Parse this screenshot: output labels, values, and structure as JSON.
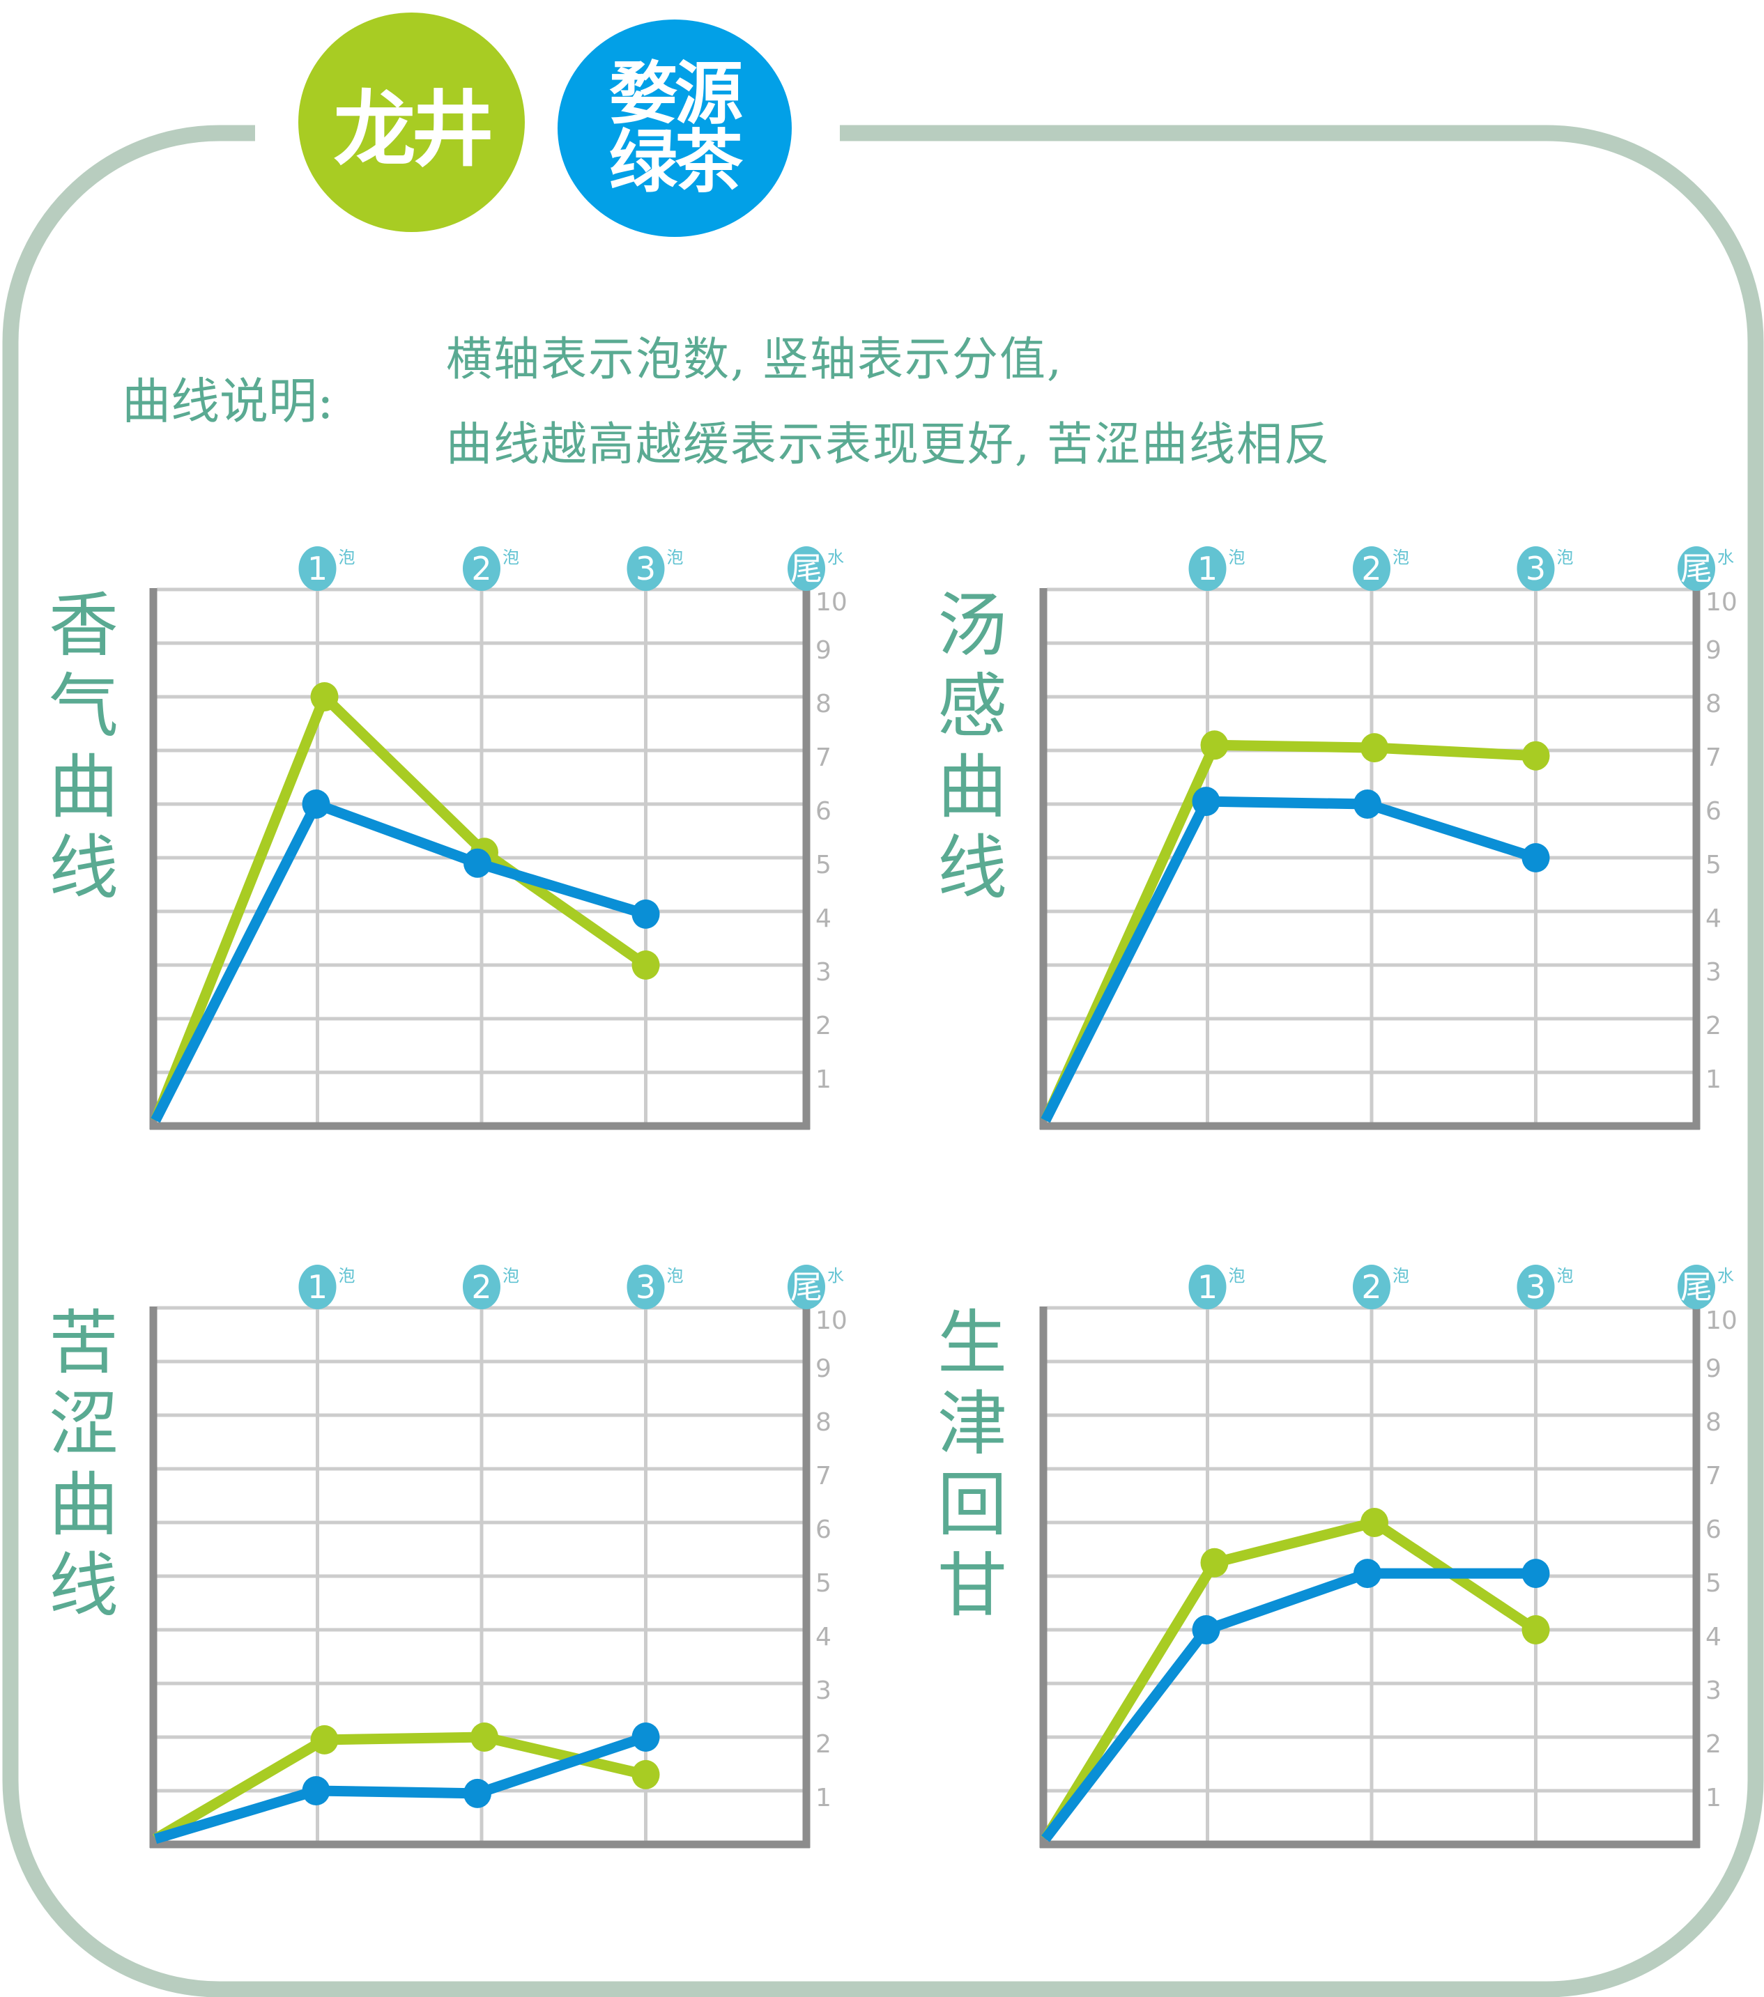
{
  "badges": {
    "longjing": {
      "label": "龙井",
      "color": "#a8cc23"
    },
    "wuyuan": {
      "line1": "婺源",
      "line2": "绿茶",
      "color": "#02a0e7"
    }
  },
  "legend": {
    "label": "曲线说明:",
    "line1": "横轴表示泡数, 竖轴表示分值,",
    "line2": "曲线越高越缓表示表现更好, 苦涩曲线相反"
  },
  "colors": {
    "frame": "#b8cdbf",
    "title_text": "#5aaa92",
    "axis": "#8c8c8c",
    "grid": "#cccccc",
    "tick_text": "#b3b3b3",
    "infusion_marker": "#62c3d2",
    "series_longjing": "#a8cc23",
    "series_wuyuan": "#0a8fd6"
  },
  "x_markers": [
    {
      "num": "1",
      "suffix": "泡"
    },
    {
      "num": "2",
      "suffix": "泡"
    },
    {
      "num": "3",
      "suffix": "泡"
    },
    {
      "num": "尾",
      "suffix": "水"
    }
  ],
  "y_ticks": [
    "10",
    "9",
    "8",
    "7",
    "6",
    "5",
    "4",
    "3",
    "2",
    "1"
  ],
  "chart_data": [
    {
      "type": "line",
      "title": "香气曲线",
      "xlabel": "泡数",
      "ylabel": "分值",
      "categories": [
        "0",
        "1泡",
        "2泡",
        "3泡",
        "尾水"
      ],
      "ylim": [
        0,
        10
      ],
      "grid": true,
      "series": [
        {
          "name": "龙井",
          "color": "#a8cc23",
          "values": [
            0,
            8.0,
            5.1,
            3.0
          ]
        },
        {
          "name": "婺源绿茶",
          "color": "#0a8fd6",
          "values": [
            0,
            6.0,
            4.9,
            3.95
          ]
        }
      ]
    },
    {
      "type": "line",
      "title": "汤感曲线",
      "xlabel": "泡数",
      "ylabel": "分值",
      "categories": [
        "0",
        "1泡",
        "2泡",
        "3泡",
        "尾水"
      ],
      "ylim": [
        0,
        10
      ],
      "grid": true,
      "series": [
        {
          "name": "龙井",
          "color": "#a8cc23",
          "values": [
            0,
            7.1,
            7.05,
            6.9
          ]
        },
        {
          "name": "婺源绿茶",
          "color": "#0a8fd6",
          "values": [
            0,
            6.05,
            6.0,
            5.0
          ]
        }
      ]
    },
    {
      "type": "line",
      "title": "苦涩曲线",
      "xlabel": "泡数",
      "ylabel": "分值",
      "categories": [
        "0",
        "1泡",
        "2泡",
        "3泡",
        "尾水"
      ],
      "ylim": [
        0,
        10
      ],
      "grid": true,
      "series": [
        {
          "name": "龙井",
          "color": "#a8cc23",
          "values": [
            0,
            1.95,
            2.0,
            1.3
          ]
        },
        {
          "name": "婺源绿茶",
          "color": "#0a8fd6",
          "values": [
            0,
            1.0,
            0.95,
            2.0
          ]
        }
      ]
    },
    {
      "type": "line",
      "title": "生津回甘",
      "xlabel": "泡数",
      "ylabel": "分值",
      "categories": [
        "0",
        "1泡",
        "2泡",
        "3泡",
        "尾水"
      ],
      "ylim": [
        0,
        10
      ],
      "grid": true,
      "series": [
        {
          "name": "龙井",
          "color": "#a8cc23",
          "values": [
            0,
            5.25,
            6.0,
            4.0
          ]
        },
        {
          "name": "婺源绿茶",
          "color": "#0a8fd6",
          "values": [
            0,
            4.0,
            5.05,
            5.05
          ]
        }
      ]
    }
  ]
}
